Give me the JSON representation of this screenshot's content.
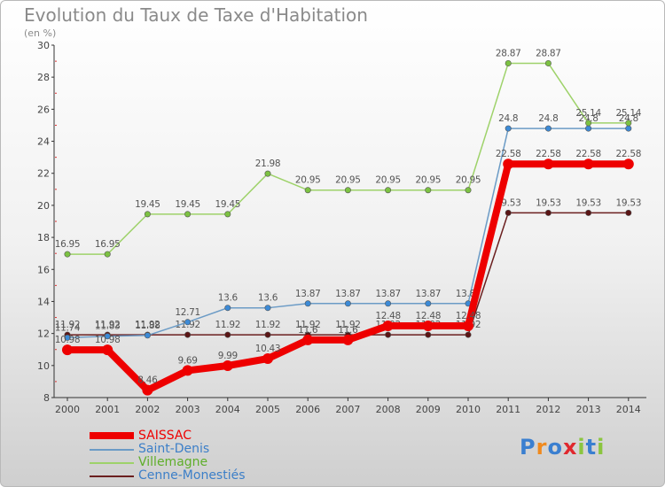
{
  "header": {
    "title": "Evolution du Taux de Taxe d'Habitation",
    "unit": "(en %)"
  },
  "brand": {
    "logo_text": "Proxiti",
    "colors": [
      "#3a7fd0",
      "#f08a1e",
      "#3a7fd0",
      "#e0282e",
      "#8bc53f",
      "#3a7fd0",
      "#8bc53f"
    ]
  },
  "chart_data": {
    "type": "line",
    "title": "Evolution du Taux de Taxe d'Habitation",
    "ylabel": "(en %)",
    "xlabel": "",
    "ylim": [
      8,
      30
    ],
    "yticks": [
      8,
      10,
      12,
      14,
      16,
      18,
      20,
      22,
      24,
      26,
      28,
      30
    ],
    "grid": false,
    "legend_position": "bottom",
    "x": [
      "2000",
      "2001",
      "2002",
      "2003",
      "2004",
      "2005",
      "2006",
      "2007",
      "2008",
      "2009",
      "2010",
      "2011",
      "2012",
      "2013",
      "2014"
    ],
    "series": [
      {
        "name": "Cenne-Monestiés",
        "color": "#6b1f1f",
        "marker": "#5a1515",
        "values": [
          11.92,
          11.92,
          11.92,
          11.92,
          11.92,
          11.92,
          11.92,
          11.92,
          11.92,
          11.92,
          11.92,
          19.53,
          19.53,
          19.53,
          19.53
        ],
        "labels": [
          "11.92",
          "11.92",
          "11.92",
          "11.92",
          "11.92",
          "11.92",
          "11.92",
          "11.92",
          "11.92",
          "11.92",
          "11.92",
          "19.53",
          "19.53",
          "19.53",
          "19.53"
        ]
      },
      {
        "name": "Saint-Denis",
        "color": "#6b9bc6",
        "marker": "#3c8ad6",
        "values": [
          11.74,
          11.83,
          11.88,
          12.71,
          13.6,
          13.6,
          13.87,
          13.87,
          13.87,
          13.87,
          13.87,
          24.8,
          24.8,
          24.8,
          24.8
        ],
        "labels": [
          "11.74",
          "11.83",
          "11.88",
          "12.71",
          "13.6",
          "13.6",
          "13.87",
          "13.87",
          "13.87",
          "13.87",
          "13.87",
          "24.8",
          "24.8",
          "24.8",
          "24.8"
        ]
      },
      {
        "name": "Villemagne",
        "color": "#9ed26a",
        "marker": "#7cc242",
        "values": [
          16.95,
          16.95,
          19.45,
          19.45,
          19.45,
          21.98,
          20.95,
          20.95,
          20.95,
          20.95,
          20.95,
          28.87,
          28.87,
          25.14,
          25.14
        ],
        "labels": [
          "16.95",
          "16.95",
          "19.45",
          "19.45",
          "19.45",
          "21.98",
          "20.95",
          "20.95",
          "20.95",
          "20.95",
          "20.95",
          "28.87",
          "28.87",
          "25.14",
          "25.14"
        ]
      },
      {
        "name": "SAISSAC",
        "color": "#ee0000",
        "marker": "#ee0000",
        "values": [
          10.98,
          10.98,
          8.46,
          9.69,
          9.99,
          10.43,
          11.6,
          11.6,
          12.48,
          12.48,
          12.48,
          22.58,
          22.58,
          22.58,
          22.58
        ],
        "labels": [
          "10.98",
          "10.98",
          "8.46",
          "9.69",
          "9.99",
          "10.43",
          "11.6",
          "11.6",
          "12.48",
          "12.48",
          "12.48",
          "22.58",
          "22.58",
          "22.58",
          "22.58"
        ]
      }
    ],
    "legend_order": [
      "SAISSAC",
      "Saint-Denis",
      "Villemagne",
      "Cenne-Monestiés"
    ]
  }
}
